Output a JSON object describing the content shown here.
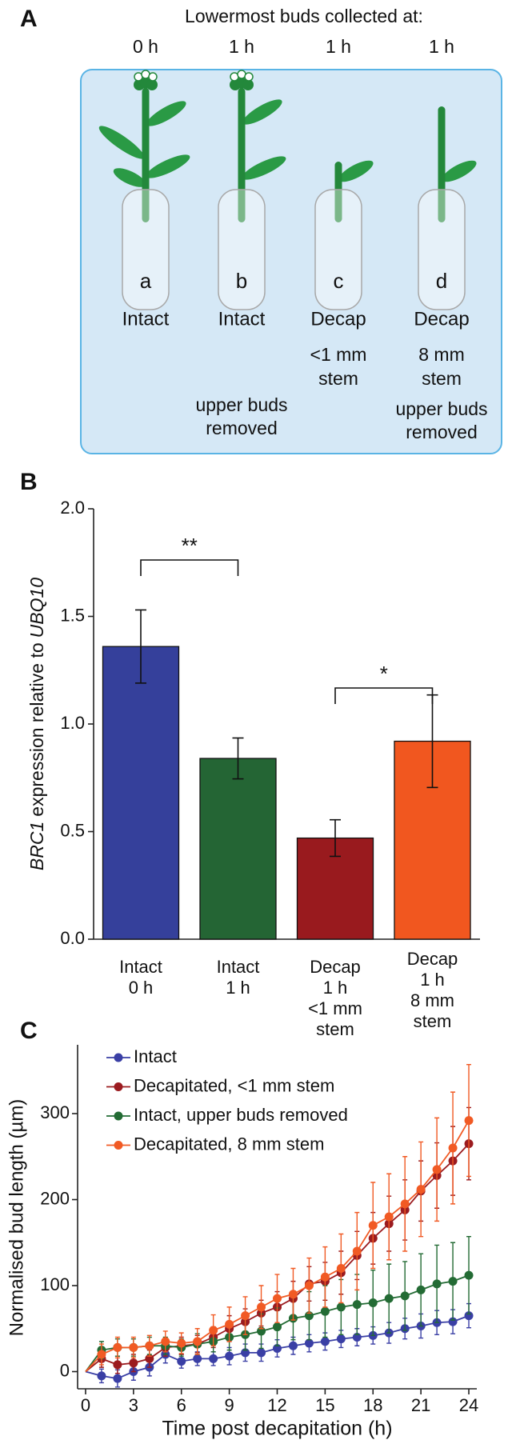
{
  "panel_labels": [
    "A",
    "B",
    "C"
  ],
  "diagram": {
    "title": "Lowermost buds collected at:",
    "columns": [
      {
        "time": "0 h",
        "letter": "a",
        "label": "Intact"
      },
      {
        "time": "1 h",
        "letter": "b",
        "label": "Intact",
        "note": "upper buds\nremoved"
      },
      {
        "time": "1 h",
        "letter": "c",
        "label": "Decap",
        "stem": "<1 mm\nstem"
      },
      {
        "time": "1 h",
        "letter": "d",
        "label": "Decap",
        "stem": "8 mm\nstem",
        "note": "upper buds\nremoved"
      }
    ]
  },
  "chart_data": [
    {
      "type": "bar",
      "y_label": [
        "BRC1",
        "expression relative to",
        "UBQ10"
      ],
      "categories": [
        "Intact\n0 h",
        "Intact\n1 h",
        "Decap\n1 h\n<1 mm\nstem",
        "Decap\n1 h\n8 mm\nstem"
      ],
      "values": [
        1.36,
        0.84,
        0.47,
        0.92
      ],
      "errors": [
        0.17,
        0.095,
        0.085,
        0.215
      ],
      "colors": [
        "#35409b",
        "#246534",
        "#991a1e",
        "#f1571f"
      ],
      "ylim": [
        0,
        2
      ],
      "yticks": [
        {
          "value": 0,
          "label": "0.0"
        },
        0.5,
        {
          "value": 1,
          "label": "1.0"
        },
        1.5,
        {
          "value": 2,
          "label": "2.0"
        }
      ],
      "annotations": [
        "**",
        "*"
      ]
    },
    {
      "type": "line",
      "x_label": "Time post decapitation (h)",
      "y_label": "Normalised bud length (µm)",
      "x": [
        0,
        1,
        2,
        3,
        4,
        5,
        6,
        7,
        8,
        9,
        10,
        11,
        12,
        13,
        14,
        15,
        16,
        17,
        18,
        19,
        20,
        21,
        22,
        23,
        24
      ],
      "series": [
        {
          "name": "Intact",
          "color": "#3a3fa5",
          "values": [
            0,
            -5,
            -8,
            0,
            5,
            20,
            12,
            15,
            15,
            18,
            22,
            22,
            27,
            30,
            33,
            35,
            38,
            40,
            42,
            45,
            50,
            53,
            57,
            58,
            65
          ],
          "errors": [
            null,
            8,
            10,
            10,
            10,
            10,
            8,
            8,
            8,
            10,
            10,
            10,
            10,
            10,
            10,
            10,
            10,
            10,
            10,
            12,
            12,
            14,
            14,
            14,
            14
          ]
        },
        {
          "name": "Decapitated, <1 mm stem",
          "color": "#9b1b1f",
          "values": [
            0,
            15,
            8,
            10,
            15,
            28,
            30,
            32,
            40,
            50,
            58,
            68,
            75,
            85,
            102,
            105,
            115,
            135,
            155,
            172,
            188,
            210,
            228,
            245,
            265
          ],
          "errors": [
            null,
            10,
            10,
            10,
            10,
            10,
            10,
            10,
            12,
            15,
            15,
            15,
            18,
            20,
            20,
            22,
            25,
            28,
            30,
            32,
            35,
            35,
            38,
            40,
            42
          ]
        },
        {
          "name": "Intact, upper buds removed",
          "color": "#236b34",
          "values": [
            0,
            25,
            28,
            28,
            30,
            30,
            28,
            32,
            35,
            40,
            43,
            47,
            52,
            62,
            65,
            70,
            75,
            78,
            80,
            85,
            88,
            95,
            102,
            105,
            112
          ],
          "errors": [
            null,
            10,
            10,
            10,
            10,
            10,
            10,
            12,
            12,
            15,
            18,
            20,
            22,
            25,
            28,
            30,
            32,
            35,
            38,
            40,
            40,
            42,
            45,
            45,
            45
          ]
        },
        {
          "name": "Decapitated, 8 mm stem",
          "color": "#f15a24",
          "values": [
            0,
            20,
            28,
            28,
            30,
            35,
            33,
            35,
            48,
            55,
            65,
            75,
            85,
            90,
            100,
            110,
            120,
            140,
            170,
            180,
            195,
            212,
            235,
            260,
            292
          ],
          "errors": [
            null,
            12,
            12,
            12,
            12,
            12,
            12,
            15,
            18,
            20,
            22,
            25,
            28,
            30,
            32,
            35,
            40,
            45,
            50,
            50,
            55,
            55,
            60,
            65,
            65
          ]
        }
      ],
      "xlim": [
        -0.5,
        24.5
      ],
      "ylim": [
        -20,
        380
      ],
      "xticks": [
        0,
        3,
        6,
        9,
        12,
        15,
        18,
        21,
        24
      ],
      "yticks": [
        0,
        100,
        200,
        300
      ]
    }
  ]
}
